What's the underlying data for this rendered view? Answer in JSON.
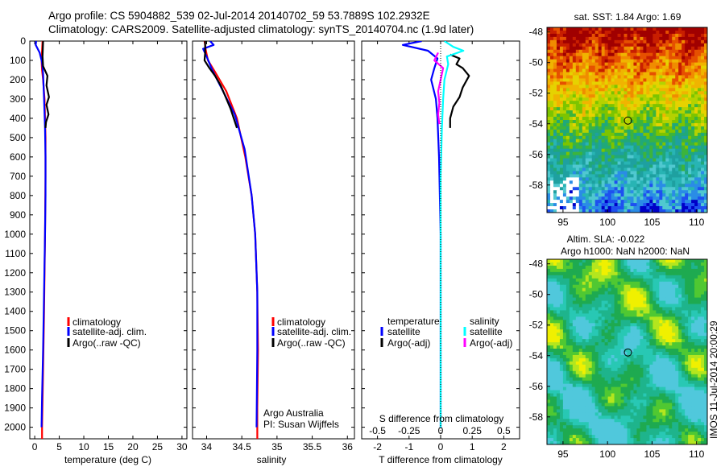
{
  "header": {
    "line1": "Argo profile: CS 5904882_539 02-Jul-2014 20140702_59 53.7889S 102.2932E",
    "line2": "Climatology: CARS2009. Satellite-adjusted climatology: synTS_20140704.nc (1.9d later)"
  },
  "depth_ticks": [
    "0",
    "100",
    "200",
    "300",
    "400",
    "500",
    "600",
    "700",
    "800",
    "900",
    "1000",
    "1100",
    "1200",
    "1300",
    "1400",
    "1500",
    "1600",
    "1700",
    "1800",
    "1900",
    "2000"
  ],
  "colors": {
    "climatology": "#ff0000",
    "satellite": "#0000ff",
    "argo": "#000000",
    "cyan": "#00ffff",
    "magenta": "#ff00ff"
  },
  "legend_main": {
    "climatology": "climatology",
    "satellite": "satellite-adj. clim.",
    "argo": "Argo(..raw -QC)"
  },
  "legend_diff": {
    "temp_header": "temperature",
    "sal_header": "salinity",
    "satellite": "satellite",
    "argo": "Argo(-adj)"
  },
  "annotations": {
    "operator": "Argo Australia",
    "pi": "PI: Susan Wijffels",
    "s_diff_label": "S difference from climatology"
  },
  "footer": {
    "stamp": "IMOS 11-Jul-2014 20:00:29"
  },
  "maps": {
    "sst_title": "sat. SST: 1.84  Argo: 1.69",
    "sla_title1": "Altim. SLA: -0.022",
    "sla_title2": "Argo h1000: NaN h2000: NaN",
    "x_ticks": [
      "95",
      "100",
      "105",
      "110"
    ],
    "y_ticks": [
      "-48",
      "-50",
      "-52",
      "-54",
      "-56",
      "-58"
    ],
    "x_range": [
      93.2,
      111.2
    ],
    "y_range": [
      -59.8,
      -47.7
    ],
    "float_lon": 102.29,
    "float_lat": -53.79
  },
  "chart_data": [
    {
      "type": "line",
      "name": "temperature",
      "xlabel": "temperature (deg C)",
      "ylabel": "",
      "xlim": [
        -1,
        31
      ],
      "ylim": [
        2060,
        0
      ],
      "x_ticks": [
        "0",
        "5",
        "10",
        "15",
        "20",
        "25",
        "30"
      ],
      "series": [
        {
          "name": "climatology",
          "points": [
            [
              1.6,
              0
            ],
            [
              1.5,
              50
            ],
            [
              1.4,
              100
            ],
            [
              1.5,
              150
            ],
            [
              1.7,
              200
            ],
            [
              2.0,
              300
            ],
            [
              2.1,
              400
            ],
            [
              2.2,
              500
            ],
            [
              2.2,
              700
            ],
            [
              2.1,
              1000
            ],
            [
              1.9,
              1400
            ],
            [
              1.7,
              1700
            ],
            [
              1.5,
              2000
            ],
            [
              1.5,
              2060
            ]
          ]
        },
        {
          "name": "satellite-adj. clim.",
          "points": [
            [
              0.3,
              0
            ],
            [
              0.2,
              20
            ],
            [
              1.0,
              60
            ],
            [
              1.5,
              110
            ],
            [
              1.7,
              170
            ],
            [
              1.9,
              300
            ],
            [
              2.1,
              450
            ],
            [
              2.2,
              600
            ],
            [
              2.2,
              800
            ],
            [
              2.1,
              1000
            ],
            [
              1.9,
              1300
            ],
            [
              1.7,
              1600
            ],
            [
              1.5,
              1850
            ],
            [
              1.4,
              2000
            ]
          ]
        },
        {
          "name": "Argo(..raw -QC)",
          "points": [
            [
              1.7,
              0
            ],
            [
              1.6,
              80
            ],
            [
              1.7,
              130
            ],
            [
              2.6,
              180
            ],
            [
              2.4,
              230
            ],
            [
              2.9,
              290
            ],
            [
              2.4,
              330
            ],
            [
              2.8,
              380
            ],
            [
              2.3,
              420
            ],
            [
              2.2,
              450
            ]
          ]
        }
      ]
    },
    {
      "type": "line",
      "name": "salinity",
      "xlabel": "salinity",
      "ylabel": "",
      "xlim": [
        33.8,
        36.1
      ],
      "ylim": [
        2060,
        0
      ],
      "x_ticks": [
        "34",
        "34.5",
        "35",
        "35.5",
        "36"
      ],
      "series": [
        {
          "name": "climatology",
          "points": [
            [
              33.97,
              0
            ],
            [
              33.99,
              50
            ],
            [
              34.02,
              100
            ],
            [
              34.12,
              160
            ],
            [
              34.28,
              260
            ],
            [
              34.43,
              400
            ],
            [
              34.55,
              600
            ],
            [
              34.64,
              800
            ],
            [
              34.69,
              1000
            ],
            [
              34.72,
              1300
            ],
            [
              34.73,
              1600
            ],
            [
              34.72,
              1900
            ],
            [
              34.72,
              2060
            ]
          ]
        },
        {
          "name": "satellite-adj. clim.",
          "points": [
            [
              34.05,
              0
            ],
            [
              34.1,
              20
            ],
            [
              33.95,
              40
            ],
            [
              34.0,
              80
            ],
            [
              34.08,
              150
            ],
            [
              34.22,
              250
            ],
            [
              34.4,
              380
            ],
            [
              34.54,
              560
            ],
            [
              34.64,
              800
            ],
            [
              34.69,
              1000
            ],
            [
              34.72,
              1300
            ],
            [
              34.72,
              1600
            ],
            [
              34.71,
              2000
            ]
          ]
        },
        {
          "name": "Argo(..raw -QC)",
          "points": [
            [
              33.98,
              0
            ],
            [
              33.98,
              60
            ],
            [
              33.97,
              100
            ],
            [
              34.04,
              140
            ],
            [
              34.12,
              180
            ],
            [
              34.2,
              230
            ],
            [
              34.27,
              290
            ],
            [
              34.34,
              350
            ],
            [
              34.43,
              450
            ]
          ]
        }
      ]
    },
    {
      "type": "line",
      "name": "differences",
      "xlabel": "T difference from climatology",
      "ylabel": "",
      "xlim": [
        -2.5,
        2.5
      ],
      "ylim": [
        2060,
        0
      ],
      "x_ticks": [
        "-2",
        "-1",
        "0",
        "1",
        "2"
      ],
      "secondary_x_label": "S difference from climatology",
      "secondary_x_ticks": [
        "-0.5",
        "-0.25",
        "0",
        "0.25",
        "0.5"
      ],
      "secondary_xlim": [
        -0.625,
        0.625
      ],
      "series": [
        {
          "name": "temperature satellite",
          "axis": "T",
          "points": [
            [
              -0.6,
              0
            ],
            [
              -1.2,
              20
            ],
            [
              -0.4,
              50
            ],
            [
              -0.1,
              90
            ],
            [
              -0.2,
              140
            ],
            [
              -0.3,
              200
            ],
            [
              -0.15,
              300
            ],
            [
              -0.1,
              400
            ],
            [
              -0.05,
              600
            ],
            [
              0.0,
              1000
            ],
            [
              0.0,
              2000
            ]
          ]
        },
        {
          "name": "temperature Argo(-adj)",
          "axis": "T",
          "points": [
            [
              0.3,
              70
            ],
            [
              0.6,
              90
            ],
            [
              0.5,
              120
            ],
            [
              0.7,
              140
            ],
            [
              0.9,
              180
            ],
            [
              0.7,
              240
            ],
            [
              0.6,
              290
            ],
            [
              0.4,
              340
            ],
            [
              0.3,
              400
            ],
            [
              0.3,
              450
            ]
          ]
        },
        {
          "name": "salinity satellite",
          "axis": "S",
          "points": [
            [
              0.03,
              0
            ],
            [
              0.1,
              30
            ],
            [
              0.18,
              50
            ],
            [
              0.05,
              80
            ],
            [
              0.06,
              120
            ],
            [
              0.03,
              200
            ],
            [
              0.02,
              300
            ],
            [
              0.01,
              450
            ],
            [
              0.0,
              700
            ],
            [
              0.0,
              1200
            ],
            [
              0.0,
              2000
            ]
          ]
        },
        {
          "name": "salinity Argo(-adj)",
          "axis": "S",
          "points": [
            [
              -0.02,
              60
            ],
            [
              -0.05,
              100
            ],
            [
              0.02,
              140
            ],
            [
              0.0,
              200
            ],
            [
              -0.02,
              260
            ],
            [
              -0.01,
              320
            ],
            [
              -0.02,
              380
            ],
            [
              -0.01,
              430
            ]
          ]
        }
      ]
    }
  ]
}
